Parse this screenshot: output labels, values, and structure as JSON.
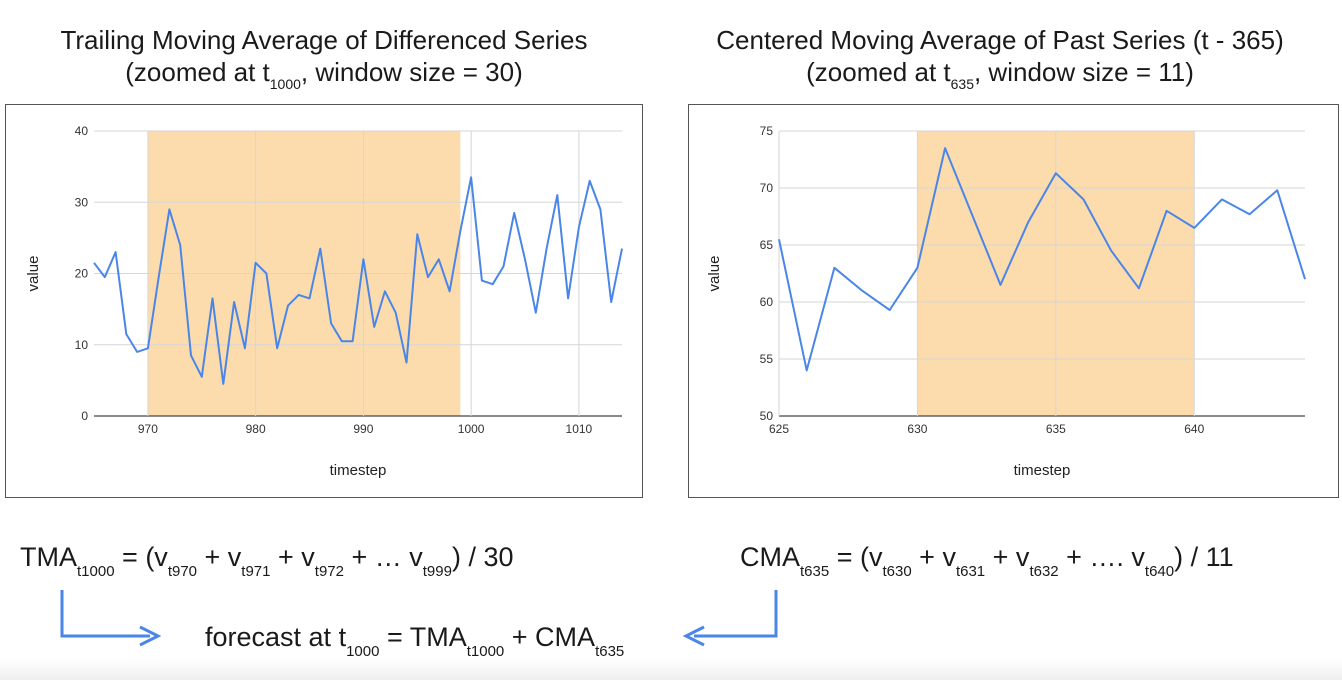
{
  "charts": [
    {
      "title_line1": "Trailing Moving Average of Differenced Series",
      "title_line2_pre": "(zoomed at t",
      "title_line2_sub": "1000",
      "title_line2_post": ", window size = 30)"
    },
    {
      "title_line1": "Centered Moving Average of Past Series (t - 365)",
      "title_line2_pre": "(zoomed at t",
      "title_line2_sub": "635",
      "title_line2_post": ", window size = 11)"
    }
  ],
  "chart_data": [
    {
      "type": "line",
      "xlabel": "timestep",
      "ylabel": "value",
      "xlim": [
        965,
        1014
      ],
      "ylim": [
        0,
        40
      ],
      "yticks": [
        0,
        10,
        20,
        30,
        40
      ],
      "xticks": [
        970,
        980,
        990,
        1000,
        1010
      ],
      "grid": true,
      "highlight_range": [
        970,
        999
      ],
      "highlight_color": "#fcdcad",
      "line_color": "#4a86e8",
      "x": [
        965,
        966,
        967,
        968,
        969,
        970,
        971,
        972,
        973,
        974,
        975,
        976,
        977,
        978,
        979,
        980,
        981,
        982,
        983,
        984,
        985,
        986,
        987,
        988,
        989,
        990,
        991,
        992,
        993,
        994,
        995,
        996,
        997,
        998,
        999,
        1000,
        1001,
        1002,
        1003,
        1004,
        1005,
        1006,
        1007,
        1008,
        1009,
        1010,
        1011,
        1012,
        1013,
        1014
      ],
      "y": [
        21.5,
        19.5,
        23,
        11.5,
        9,
        9.5,
        19.5,
        29,
        24,
        8.5,
        5.5,
        16.5,
        4.5,
        16,
        9.5,
        21.5,
        20,
        9.5,
        15.5,
        17,
        16.5,
        23.5,
        13,
        10.5,
        10.5,
        22,
        12.5,
        17.5,
        14.5,
        7.5,
        25.5,
        19.5,
        22,
        17.5,
        26,
        33.5,
        19,
        18.5,
        21,
        28.5,
        22,
        14.5,
        23.5,
        31,
        16.5,
        26.5,
        33,
        29,
        16,
        23.5
      ]
    },
    {
      "type": "line",
      "xlabel": "timestep",
      "ylabel": "value",
      "xlim": [
        625,
        644
      ],
      "ylim": [
        50,
        75
      ],
      "yticks": [
        50,
        55,
        60,
        65,
        70,
        75
      ],
      "xticks": [
        625,
        630,
        635,
        640
      ],
      "grid": true,
      "highlight_range": [
        630,
        640
      ],
      "highlight_color": "#fcdcad",
      "line_color": "#4a86e8",
      "x": [
        625,
        626,
        627,
        628,
        629,
        630,
        631,
        632,
        633,
        634,
        635,
        636,
        637,
        638,
        639,
        640,
        641,
        642,
        643,
        644
      ],
      "y": [
        65.5,
        54,
        63,
        61,
        59.3,
        63,
        73.5,
        67.5,
        61.5,
        67,
        71.3,
        69,
        64.5,
        61.2,
        68,
        66.5,
        69,
        67.7,
        69.8,
        62
      ]
    }
  ],
  "formulas": {
    "tma": {
      "lhs": "TMA",
      "lhs_sub": "t1000",
      "eq": " = (v",
      "s1": "t970",
      "p1": " + v",
      "s2": "t971",
      "p2": " + v",
      "s3": "t972",
      "p3": " + … v",
      "s4": "t999",
      "tail": ") / 30"
    },
    "cma": {
      "lhs": "CMA",
      "lhs_sub": "t635",
      "eq": " = (v",
      "s1": "t630",
      "p1": " + v",
      "s2": "t631",
      "p2": " + v",
      "s3": "t632",
      "p3": " + …. v",
      "s4": "t640",
      "tail": ") / 11"
    },
    "forecast": {
      "pre": "forecast at  t",
      "pre_sub": "1000",
      "eq": " = TMA",
      "tma_sub": "t1000",
      "plus": "  + CMA",
      "cma_sub": "t635"
    }
  },
  "arrow_color": "#4a86e8"
}
